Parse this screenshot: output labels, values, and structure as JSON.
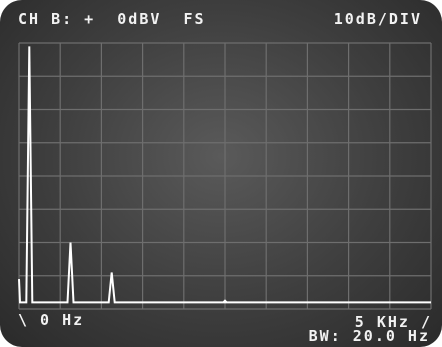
{
  "header": {
    "channel_info": "CH B: +  0dBV  FS",
    "scale": "10dB/DIV"
  },
  "footer": {
    "start_freq": "\\ 0 Hz",
    "stop_freq": "5 KHz /",
    "bandwidth": "BW: 20.0 Hz"
  },
  "chart_data": {
    "type": "line",
    "title": "",
    "xlabel": "",
    "ylabel": "",
    "x_range_hz": [
      0,
      5000
    ],
    "y_range_db": [
      -80,
      0
    ],
    "grid": true,
    "x_divisions": 10,
    "y_divisions": 8,
    "peaks": [
      {
        "freq_hz": 0,
        "level_db": -71
      },
      {
        "freq_hz": 125,
        "level_db": -1
      },
      {
        "freq_hz": 625,
        "level_db": -60
      },
      {
        "freq_hz": 1125,
        "level_db": -69
      }
    ],
    "noise_floor_db": -78,
    "trace_color": "#ffffff",
    "grid_color": "#6e6e6e"
  }
}
